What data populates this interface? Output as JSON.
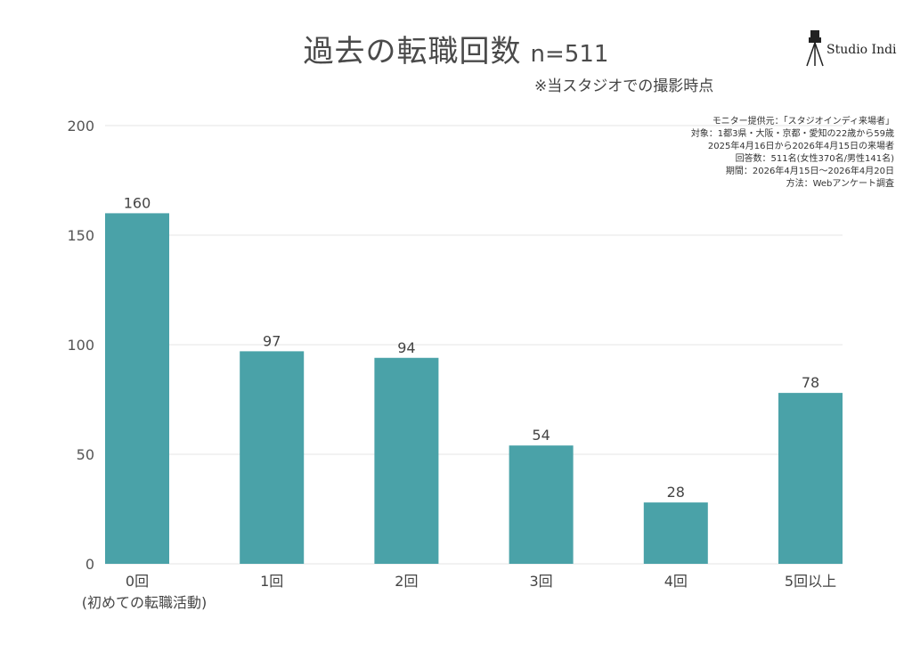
{
  "header": {
    "title": "過去の転職回数",
    "n_label": "n=511",
    "subtitle": "※当スタジオでの撮影時点"
  },
  "logo": {
    "text": "Studio Indi",
    "icon": "camera-tripod-icon"
  },
  "notes": [
    "モニター提供元：「スタジオインディ来場者」",
    "対象：1都3県・大阪・京都・愛知の22歳から59歳",
    "2025年4月16日から2026年4月15日の来場者",
    "回答数：511名(女性370名/男性141名)",
    "期間：2026年4月15日〜2026年4月20日",
    "方法：Webアンケート調査"
  ],
  "chart_data": {
    "type": "bar",
    "title": "過去の転職回数",
    "categories": [
      "0回",
      "1回",
      "2回",
      "3回",
      "4回",
      "5回以上"
    ],
    "category_sublabels": [
      "(初めての転職活動)",
      "",
      "",
      "",
      "",
      ""
    ],
    "values": [
      160,
      97,
      94,
      54,
      28,
      78
    ],
    "ylim": [
      0,
      200
    ],
    "yticks": [
      0,
      50,
      100,
      150,
      200
    ],
    "grid": true,
    "bar_color": "#4aa2a8",
    "grid_color": "#e6e6e6",
    "show_data_labels": true
  }
}
